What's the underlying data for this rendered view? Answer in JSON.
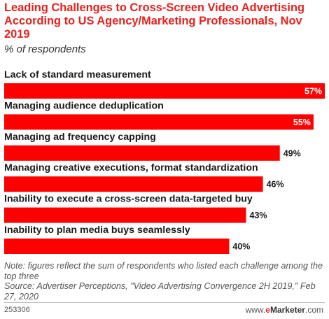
{
  "header": {
    "title": "Leading Challenges to Cross-Screen Video Advertising According to US Agency/Marketing Professionals, Nov 2019",
    "subtitle": "% of respondents"
  },
  "chart_data": {
    "type": "bar",
    "orientation": "horizontal",
    "categories": [
      "Lack of standard measurement",
      "Managing audience deduplication",
      "Managing ad frequency capping",
      "Managing creative executions, format standardization",
      "Inability to execute a cross-screen data-targeted buy",
      "Inability to plan media buys seamlessly"
    ],
    "values": [
      57,
      55,
      49,
      46,
      43,
      40
    ],
    "value_labels": [
      "57%",
      "55%",
      "49%",
      "46%",
      "43%",
      "40%"
    ],
    "xlim": [
      0,
      57
    ],
    "grid": false,
    "legend": "none",
    "bar_color": "#ff0000",
    "label_inside_color": "#ffffff",
    "label_outside_color": "#1a1a1a"
  },
  "footer": {
    "note": "Note: figures reflect the sum of respondents who listed each challenge among the top three",
    "source": "Source: Advertiser Perceptions, \"Video Advertising Convergence 2H 2019,\" Feb 27, 2020",
    "chart_id": "253306",
    "brand_prefix": "www.",
    "brand_e": "e",
    "brand_name": "Marketer",
    "brand_suffix": ".com"
  }
}
